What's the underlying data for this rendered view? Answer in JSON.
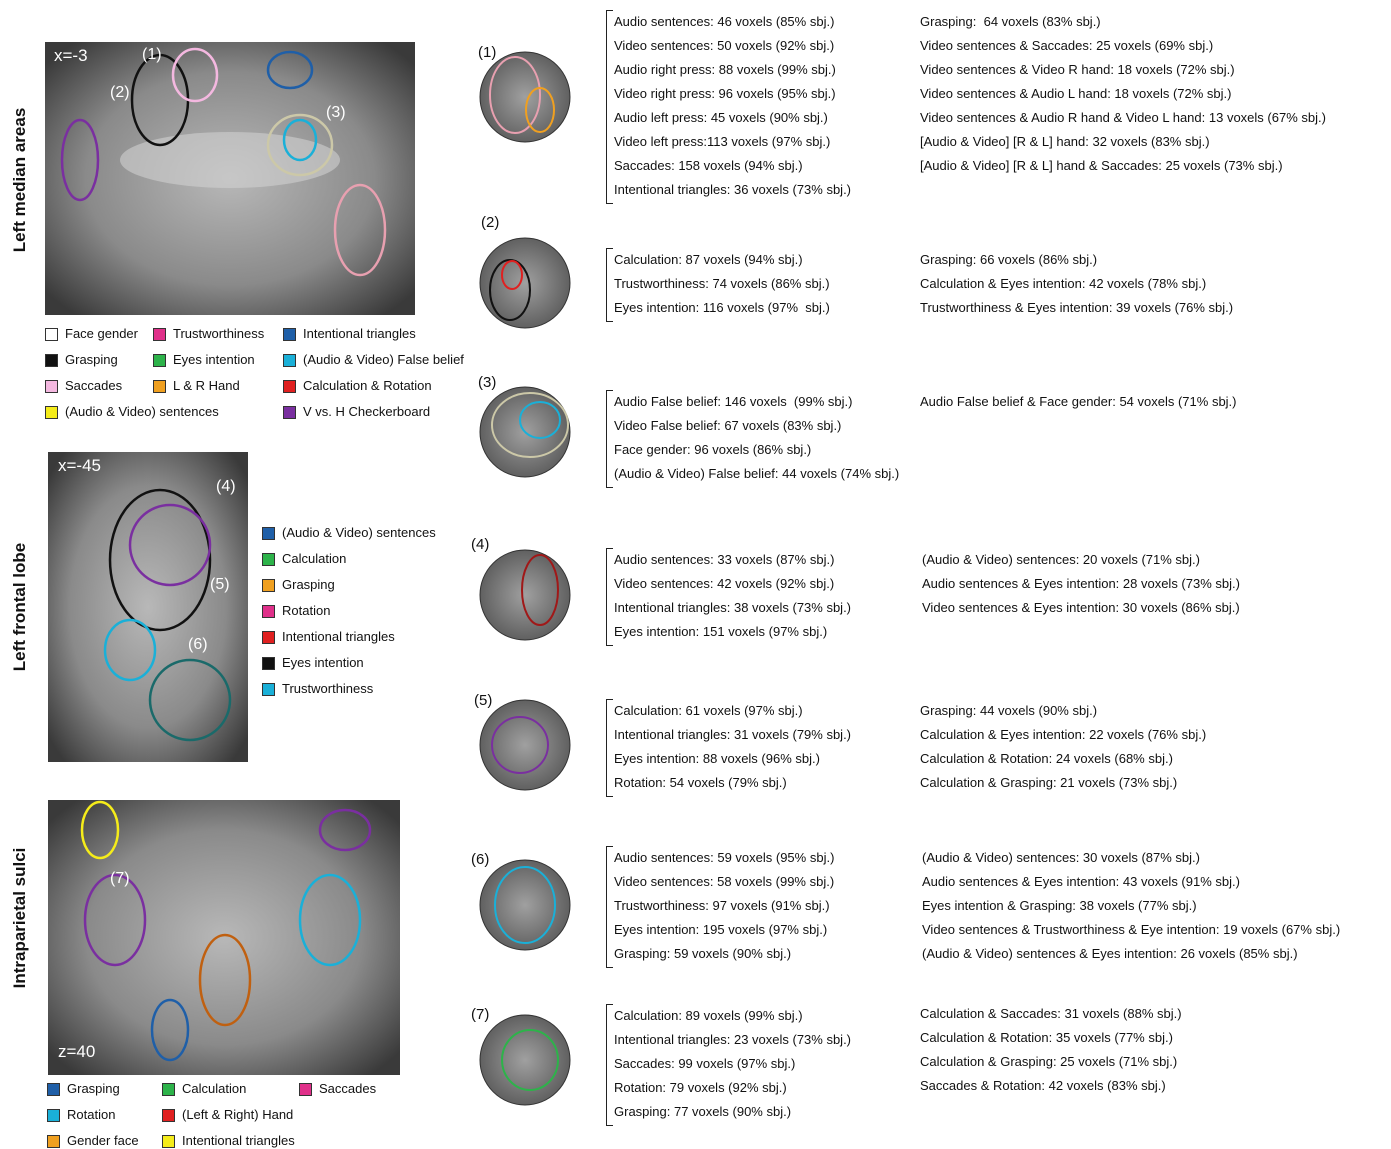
{
  "panels": [
    {
      "side_label": "Left median areas",
      "coordinate": "x=-3",
      "markers": [
        "(1)",
        "(2)",
        "(3)"
      ],
      "legend": [
        {
          "label": "Face gender",
          "color": "#ffffff"
        },
        {
          "label": "Trustworthiness",
          "color": "#e0308a"
        },
        {
          "label": "Intentional triangles",
          "color": "#1f5fa8"
        },
        {
          "label": "Grasping",
          "color": "#111111"
        },
        {
          "label": "Eyes intention",
          "color": "#2db34a"
        },
        {
          "label": "(Audio & Video) False belief",
          "color": "#1ab0d8"
        },
        {
          "label": "Saccades",
          "color": "#f4b8e0"
        },
        {
          "label": "L & R Hand",
          "color": "#f0a020"
        },
        {
          "label": "Calculation & Rotation",
          "color": "#e02020"
        },
        {
          "label": "(Audio & Video) sentences",
          "color": "#f5ec1a"
        },
        {
          "label": "V vs. H Checkerboard",
          "color": "#7a2fa0"
        }
      ]
    },
    {
      "side_label": "Left frontal lobe",
      "coordinate": "x=-45",
      "markers": [
        "(4)",
        "(5)",
        "(6)"
      ],
      "legend": [
        {
          "label": "(Audio & Video) sentences",
          "color": "#1f5fa8"
        },
        {
          "label": "Calculation",
          "color": "#2db34a"
        },
        {
          "label": "Grasping",
          "color": "#f0a020"
        },
        {
          "label": "Rotation",
          "color": "#e0308a"
        },
        {
          "label": "Intentional triangles",
          "color": "#e02020"
        },
        {
          "label": "Eyes intention",
          "color": "#111111"
        },
        {
          "label": "Trustworthiness",
          "color": "#1ab0d8"
        }
      ]
    },
    {
      "side_label": "Intraparietal sulci",
      "coordinate": "z=40",
      "markers": [
        "(7)"
      ],
      "legend": [
        {
          "label": "Grasping",
          "color": "#1f5fa8"
        },
        {
          "label": "Calculation",
          "color": "#2db34a"
        },
        {
          "label": "Saccades",
          "color": "#e0308a"
        },
        {
          "label": "Rotation",
          "color": "#1ab0d8"
        },
        {
          "label": "(Left & Right) Hand",
          "color": "#e02020"
        },
        {
          "label": "Gender face",
          "color": "#f0a020"
        },
        {
          "label": "Intentional triangles",
          "color": "#f5ec1a"
        }
      ]
    }
  ],
  "regions": [
    {
      "label": "(1)",
      "left": [
        "Audio sentences: 46 voxels (85% sbj.)",
        "Video sentences: 50 voxels (92% sbj.)",
        "Audio right press: 88 voxels (99% sbj.)",
        "Video right press: 96 voxels (95% sbj.)",
        "Audio left press: 45 voxels (90% sbj.)",
        "Video left press:113 voxels (97% sbj.)",
        "Saccades: 158 voxels (94% sbj.)",
        "Intentional triangles: 36 voxels (73% sbj.)"
      ],
      "right": [
        "Grasping:  64 voxels (83% sbj.)",
        "Video sentences & Saccades: 25 voxels (69% sbj.)",
        "Video sentences & Video R hand: 18 voxels (72% sbj.)",
        "Video sentences & Audio L hand: 18 voxels (72% sbj.)",
        "Video sentences & Audio R hand & Video L hand: 13 voxels (67% sbj.)",
        "[Audio & Video] [R & L] hand: 32 voxels (83% sbj.)",
        "[Audio & Video] [R & L] hand & Saccades: 25 voxels (73% sbj.)"
      ]
    },
    {
      "label": "(2)",
      "left": [
        "Calculation: 87 voxels (94% sbj.)",
        "Trustworthiness: 74 voxels (86% sbj.)",
        "Eyes intention: 116 voxels (97%  sbj.)"
      ],
      "right": [
        "Grasping: 66 voxels (86% sbj.)",
        "Calculation & Eyes intention: 42 voxels (78% sbj.)",
        "Trustworthiness & Eyes intention: 39 voxels (76% sbj.)"
      ]
    },
    {
      "label": "(3)",
      "left": [
        "Audio False belief: 146 voxels  (99% sbj.)",
        "Video False belief: 67 voxels (83% sbj.)",
        "Face gender: 96 voxels (86% sbj.)",
        "(Audio & Video) False belief: 44 voxels (74% sbj.)"
      ],
      "right": [
        "Audio False belief & Face gender: 54 voxels (71% sbj.)"
      ]
    },
    {
      "label": "(4)",
      "left": [
        "Audio sentences: 33 voxels (87% sbj.)",
        "Video sentences: 42 voxels (92% sbj.)",
        "Intentional triangles: 38 voxels (73% sbj.)",
        "Eyes intention: 151 voxels (97% sbj.)"
      ],
      "right": [
        "(Audio & Video) sentences: 20 voxels (71% sbj.)",
        "Audio sentences & Eyes intention: 28 voxels (73% sbj.)",
        "Video sentences & Eyes intention: 30 voxels (86% sbj.)"
      ]
    },
    {
      "label": "(5)",
      "left": [
        "Calculation: 61 voxels (97% sbj.)",
        "Intentional triangles: 31 voxels (79% sbj.)",
        "Eyes intention: 88 voxels (96% sbj.)",
        "Rotation: 54 voxels (79% sbj.)"
      ],
      "right": [
        "Grasping: 44 voxels (90% sbj.)",
        "Calculation & Eyes intention: 22 voxels (76% sbj.)",
        "Calculation & Rotation: 24 voxels (68% sbj.)",
        "Calculation & Grasping: 21 voxels (73% sbj.)"
      ]
    },
    {
      "label": "(6)",
      "left": [
        "Audio sentences: 59 voxels (95% sbj.)",
        "Video sentences: 58 voxels (99% sbj.)",
        "Trustworthiness: 97 voxels (91% sbj.)",
        "Eyes intention: 195 voxels (97% sbj.)",
        "Grasping: 59 voxels (90% sbj.)"
      ],
      "right": [
        "(Audio & Video) sentences: 30 voxels (87% sbj.)",
        "Audio sentences & Eyes intention: 43 voxels (91% sbj.)",
        "Eyes intention & Grasping: 38 voxels (77% sbj.)",
        "Video sentences & Trustworthiness & Eye intention: 19 voxels (67% sbj.)",
        "(Audio & Video) sentences & Eyes intention: 26 voxels (85% sbj.)"
      ]
    },
    {
      "label": "(7)",
      "left": [
        "Calculation: 89 voxels (99% sbj.)",
        "Intentional triangles: 23 voxels (73% sbj.)",
        "Saccades: 99 voxels (97% sbj.)",
        "Rotation: 79 voxels (92% sbj.)",
        "Grasping: 77 voxels (90% sbj.)"
      ],
      "right": [
        "Calculation & Saccades: 31 voxels (88% sbj.)",
        "Calculation & Rotation: 35 voxels (77% sbj.)",
        "Calculation & Grasping: 25 voxels (71% sbj.)",
        "Saccades & Rotation: 42 voxels (83% sbj.)"
      ]
    }
  ]
}
